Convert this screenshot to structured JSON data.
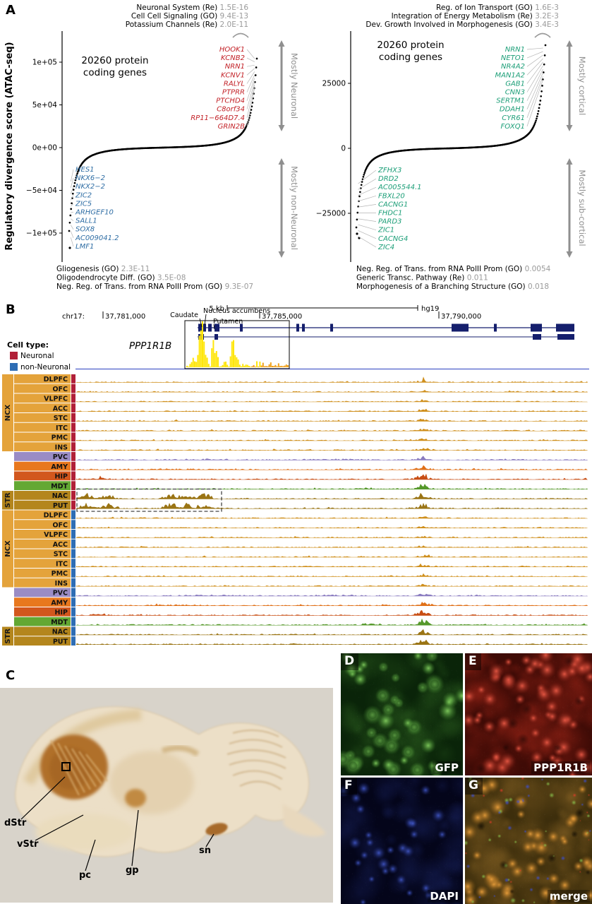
{
  "figure": {
    "panel_labels": {
      "A": "A",
      "B": "B",
      "C": "C",
      "D": "D",
      "E": "E",
      "F": "F",
      "G": "G"
    }
  },
  "panelA": {
    "y_axis_label": "Regulatory divergence score (ATAC-seq)",
    "plots": [
      {
        "title_lines": [
          "20260 protein",
          "coding genes"
        ],
        "top_terms": [
          {
            "name": "Neuronal System (Re)",
            "value": "1.5E-16"
          },
          {
            "name": "Cell Cell Signaling (GO)",
            "value": "9.4E-13"
          },
          {
            "name": "Potassium Channels (Re)",
            "value": "2.0E-11"
          }
        ],
        "bottom_terms": [
          {
            "name": "Gliogenesis (GO)",
            "value": "2.3E-11"
          },
          {
            "name": "Oligodendrocyte Diff. (GO)",
            "value": "3.5E-08"
          },
          {
            "name": "Neg. Reg. of Trans. from RNA PolII Prom (GO)",
            "value": "9.3E-07"
          }
        ],
        "y_ticks": [
          "1e+05",
          "5e+04",
          "0e+00",
          "−5e+04",
          "−1e+05"
        ],
        "up_genes": [
          "HOOK1",
          "KCNB2",
          "NRN1",
          "KCNV1",
          "RALYL",
          "PTPRR",
          "PTCHD4",
          "C8orf34",
          "RP11−664D7.4",
          "GRIN2B"
        ],
        "down_genes": [
          "HES1",
          "NKX6−2",
          "NKX2−2",
          "ZIC2",
          "ZIC5",
          "ARHGEF10",
          "SALL1",
          "SOX8",
          "AC009041.2",
          "LMF1"
        ],
        "up_label": "Mostly Neuronal",
        "down_label": "Mostly non-Neuronal",
        "up_color": "#c22026",
        "down_color": "#2e6da4"
      },
      {
        "title_lines": [
          "20260 protein",
          "coding genes"
        ],
        "top_terms": [
          {
            "name": "Reg. of Ion Transport (GO)",
            "value": "1.6E-3"
          },
          {
            "name": "Integration of Energy Metabolism (Re)",
            "value": "3.2E-3"
          },
          {
            "name": "Dev. Growth Involved in Morphogenesis (GO)",
            "value": "3.4E-3"
          }
        ],
        "bottom_terms": [
          {
            "name": "Neg. Reg. of Trans. from RNA PolII Prom (GO)",
            "value": "0.0054"
          },
          {
            "name": "Generic Transc. Pathway (Re)",
            "value": "0.011"
          },
          {
            "name": "Morphogenesis of a Branching Structure (GO)",
            "value": "0.018"
          }
        ],
        "y_ticks": [
          "25000",
          "0",
          "−25000"
        ],
        "up_genes": [
          "NRN1",
          "NETO1",
          "NR4A2",
          "MAN1A2",
          "GAB1",
          "CNN3",
          "SERTM1",
          "DDAH1",
          "CYR61",
          "FOXQ1"
        ],
        "down_genes": [
          "ZFHX3",
          "DRD2",
          "AC005544.1",
          "FBXL20",
          "CACNG1",
          "FHDC1",
          "PARD3",
          "ZIC1",
          "CACNG4",
          "ZIC4"
        ],
        "up_label": "Mostly cortical",
        "down_label": "Mostly sub-cortical",
        "up_color": "#1b9e77",
        "down_color": "#1b9e77"
      }
    ]
  },
  "panelB": {
    "chrom_label": "chr17:",
    "coord_labels": [
      "37,781,000",
      "37,785,000",
      "37,790,000"
    ],
    "scale_label": "5 kb",
    "assembly_label": "hg19",
    "gene_name": "PPP1R1B",
    "peak_labels": [
      "Caudate",
      "Nucleus accumbens",
      "Putamen"
    ],
    "legend": {
      "title": "Cell type:",
      "items": [
        {
          "label": "Neuronal",
          "color": "#b12038"
        },
        {
          "label": "non-Neuronal",
          "color": "#2e6db4"
        }
      ]
    },
    "region_rows": [
      {
        "label": "DLPFC",
        "group": "NCX"
      },
      {
        "label": "OFC",
        "group": "NCX"
      },
      {
        "label": "VLPFC",
        "group": "NCX"
      },
      {
        "label": "ACC",
        "group": "NCX"
      },
      {
        "label": "STC",
        "group": "NCX"
      },
      {
        "label": "ITC",
        "group": "NCX"
      },
      {
        "label": "PMC",
        "group": "NCX"
      },
      {
        "label": "INS",
        "group": "NCX"
      },
      {
        "label": "PVC",
        "group": null
      },
      {
        "label": "AMY",
        "group": null
      },
      {
        "label": "HIP",
        "group": null
      },
      {
        "label": "MDT",
        "group": null
      },
      {
        "label": "NAC",
        "group": "STR"
      },
      {
        "label": "PUT",
        "group": "STR"
      }
    ],
    "region_colors": {
      "NCX": "#e4a33b",
      "PVC": "#9a8cc5",
      "AMY": "#e8781e",
      "HIP": "#d2571d",
      "MDT": "#63a833",
      "STR": "#b4861d"
    },
    "track_colors": {
      "NCX": "#cf8f1c",
      "PVC": "#8a7cc0",
      "AMY": "#e07018",
      "HIP": "#c84e14",
      "MDT": "#55982a",
      "STR": "#9a7414"
    },
    "gene_model_color": "#151f6d"
  },
  "panelC": {
    "labels": [
      "dStr",
      "vStr",
      "pc",
      "gp",
      "sn"
    ]
  },
  "microscopy": [
    {
      "panel": "D",
      "label": "GFP"
    },
    {
      "panel": "E",
      "label": "PPP1R1B"
    },
    {
      "panel": "F",
      "label": "DAPI"
    },
    {
      "panel": "G",
      "label": "merge"
    }
  ]
}
